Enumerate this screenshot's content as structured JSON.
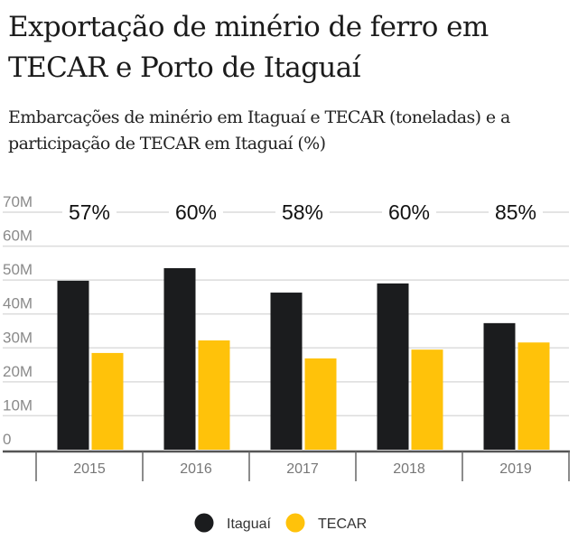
{
  "header": {
    "title": "Exportação de minério de ferro em TECAR e Porto de Itaguaí",
    "subtitle": "Embarcações de minério em Itaguaí e TECAR (toneladas) e a participação de TECAR em Itaguaí (%)"
  },
  "chart_data": {
    "type": "bar",
    "title": "Exportação de minério de ferro em TECAR e Porto de Itaguaí",
    "subtitle": "Embarcações de minério em Itaguaí e TECAR (toneladas) e a participação de TECAR em Itaguaí (%)",
    "xlabel": "",
    "ylabel": "",
    "categories": [
      "2015",
      "2016",
      "2017",
      "2018",
      "2019"
    ],
    "series": [
      {
        "name": "Itaguaí",
        "color": "#1b1c1e",
        "values": [
          49.8,
          53.5,
          46.3,
          49.0,
          37.3
        ]
      },
      {
        "name": "TECAR",
        "color": "#ffc20a",
        "values": [
          28.5,
          32.2,
          26.9,
          29.5,
          31.6
        ]
      }
    ],
    "value_unit": "M toneladas",
    "annotations": [
      "57%",
      "60%",
      "58%",
      "60%",
      "85%"
    ],
    "ylim": [
      0,
      70
    ],
    "yticks": [
      0,
      10,
      20,
      30,
      40,
      50,
      60,
      70
    ],
    "ytick_labels": [
      "0",
      "10M",
      "20M",
      "30M",
      "40M",
      "50M",
      "60M",
      "70M"
    ],
    "grid": true,
    "legend": "bottom-center"
  }
}
